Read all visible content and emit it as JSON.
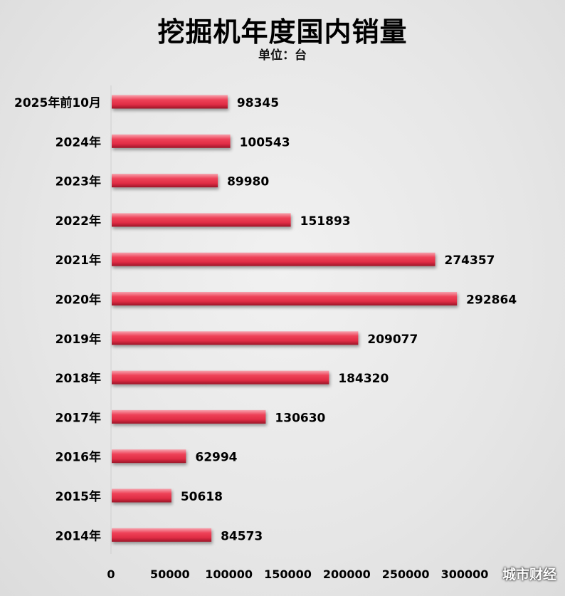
{
  "chart_data": {
    "type": "bar",
    "orientation": "horizontal",
    "title": "挖掘机年度国内销量",
    "subtitle": "单位：台",
    "categories": [
      "2025年前10月",
      "2024年",
      "2023年",
      "2022年",
      "2021年",
      "2020年",
      "2019年",
      "2018年",
      "2017年",
      "2016年",
      "2015年",
      "2014年"
    ],
    "values": [
      98345,
      100543,
      89980,
      151893,
      274357,
      292864,
      209077,
      184320,
      130630,
      62994,
      50618,
      84573
    ],
    "x_ticks": [
      "0",
      "50000",
      "100000",
      "150000",
      "200000",
      "250000",
      "300000"
    ],
    "xlim": [
      0,
      300000
    ],
    "bar_color": "#e8334a",
    "data_labels": true,
    "grid": false,
    "legend": "none"
  },
  "watermark": "城市财经"
}
